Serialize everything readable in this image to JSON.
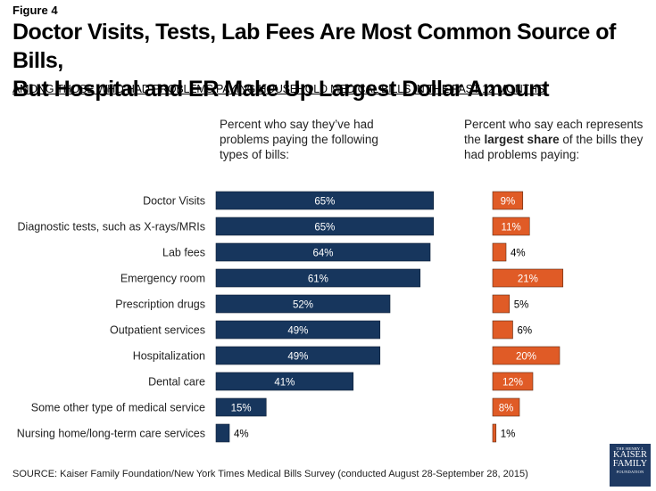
{
  "figure_label": "Figure 4",
  "title_line1": "Doctor Visits, Tests, Lab Fees Are Most Common Source of Bills,",
  "title_line2": "But Hospital and ER Make Up Largest Dollar Amount",
  "subtitle": "AMONG THOSE WHO HAD PROBLEMS PAYING HOUSEHOLD MEDICAL BILLS IN THE PAST 12 MONTHS:",
  "left_header": "Percent who say they’ve had problems paying the following types of bills:",
  "right_header": {
    "pre": "Percent who say each represents the ",
    "bold": "largest share",
    "post": " of the bills they had problems paying:"
  },
  "source": "SOURCE: Kaiser Family Foundation/New York Times Medical Bills Survey (conducted August 28-September 28, 2015)",
  "logo": {
    "line1": "THE HENRY J.",
    "line2": "KAISER",
    "line3": "FAMILY",
    "line4": "FOUNDATION"
  },
  "colors": {
    "left_bar": "#17365d",
    "right_bar": "#e05b26",
    "label_inside": "#ffffff",
    "label_outside": "#000000"
  },
  "chart_data": {
    "type": "bar",
    "orientation": "horizontal",
    "categories": [
      "Doctor Visits",
      "Diagnostic tests, such as X-rays/MRIs",
      "Lab fees",
      "Emergency room",
      "Prescription drugs",
      "Outpatient services",
      "Hospitalization",
      "Dental care",
      "Some other type of medical service",
      "Nursing home/long-term care services"
    ],
    "series": [
      {
        "name": "Percent who say they've had problems paying the following types of bills",
        "values": [
          65,
          65,
          64,
          61,
          52,
          49,
          49,
          41,
          15,
          4
        ]
      },
      {
        "name": "Percent who say each represents the largest share of the bills they had problems paying",
        "values": [
          9,
          11,
          4,
          21,
          5,
          6,
          20,
          12,
          8,
          1
        ]
      }
    ],
    "value_suffix": "%",
    "xlim": [
      0,
      100
    ],
    "grid": false,
    "legend": "none"
  }
}
